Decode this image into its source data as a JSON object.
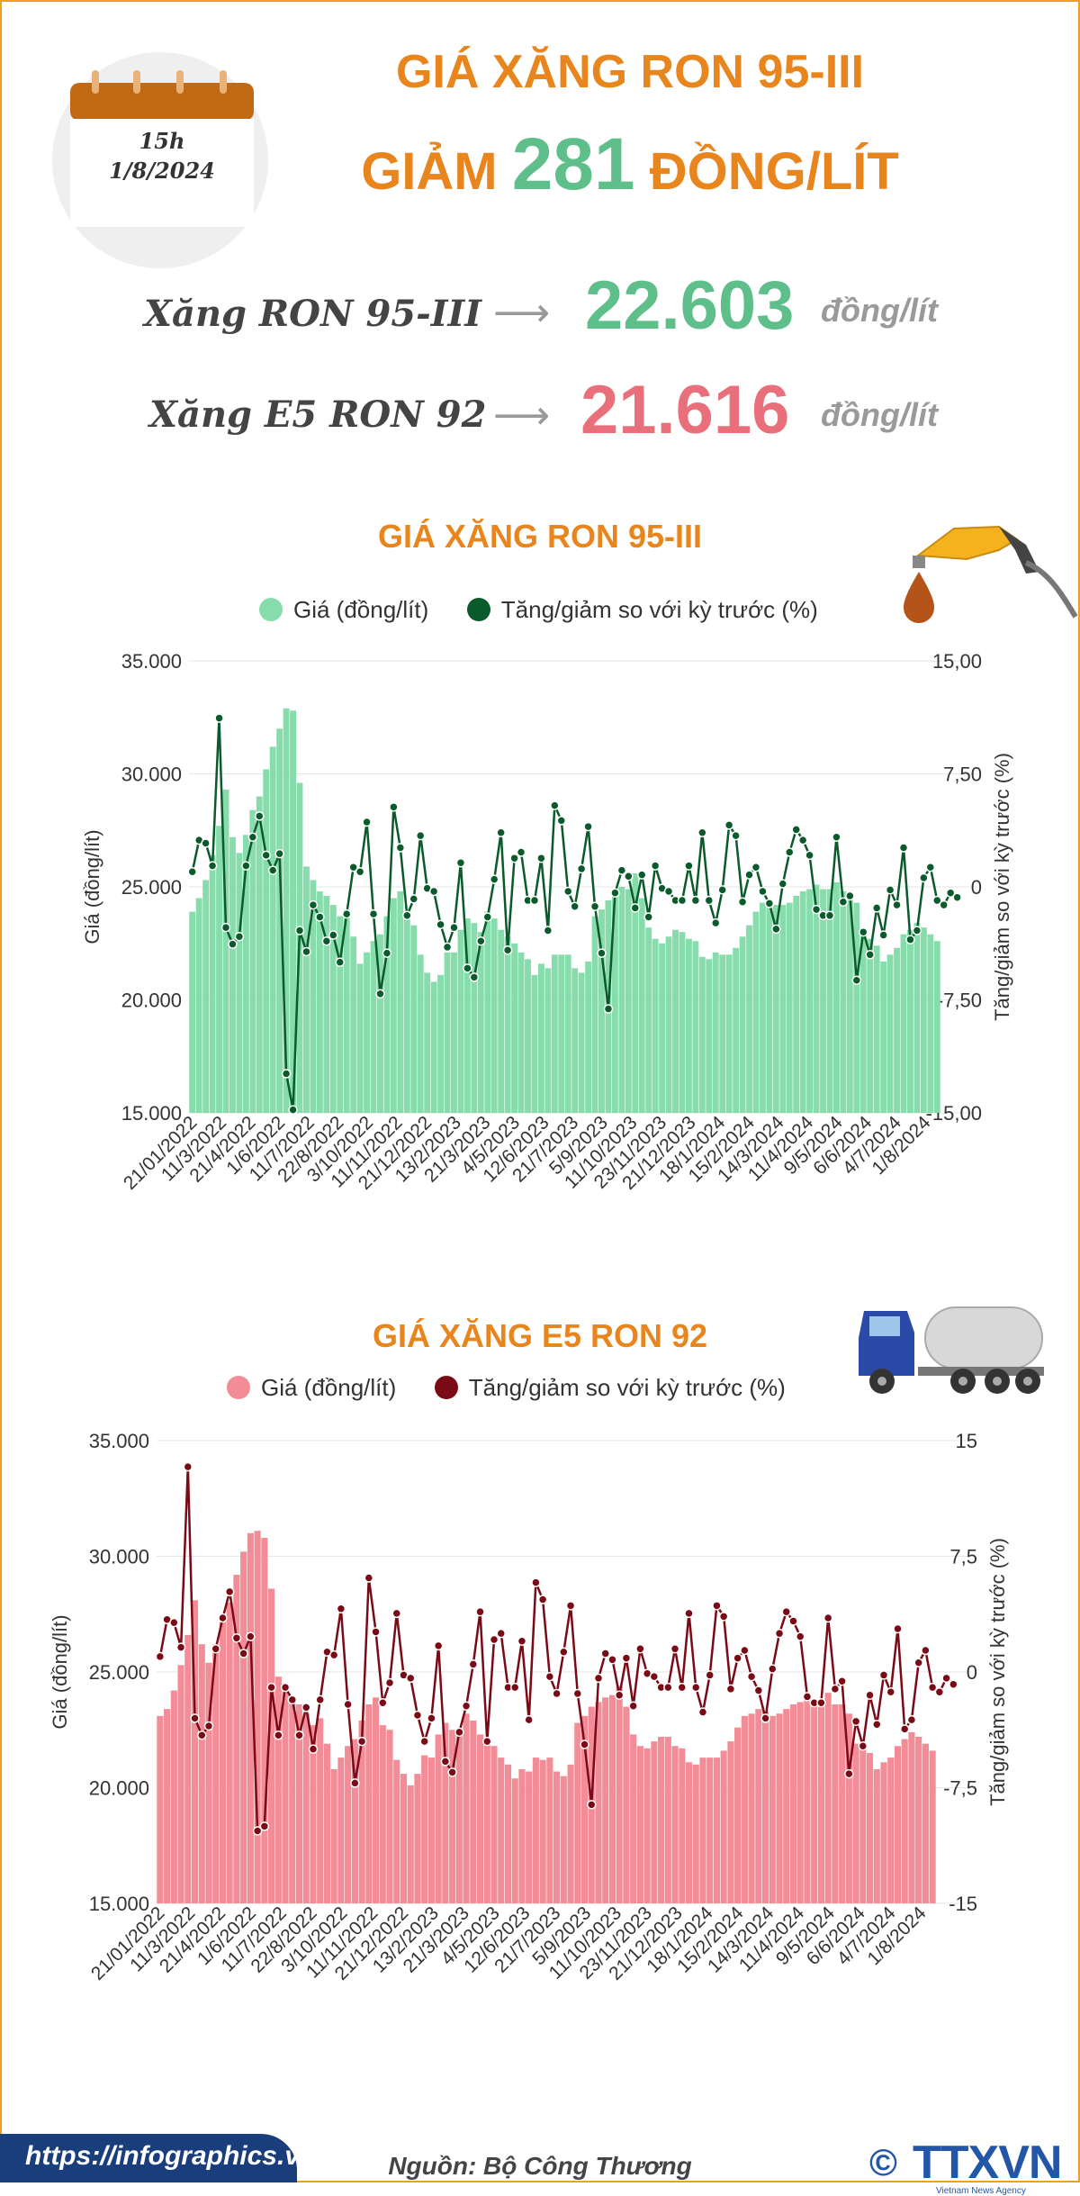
{
  "header": {
    "calendar_time": "15h",
    "calendar_date": "1/8/2024",
    "title_line1": "GIÁ XĂNG RON 95-III",
    "title_line2_prefix": "GIẢM",
    "title_line2_number": "281",
    "title_line2_suffix": "ĐỒNG/LÍT"
  },
  "prices": [
    {
      "label": "Xăng RON 95-III",
      "value": "22.603",
      "unit": "đồng/lít",
      "color": "#5fbf8b"
    },
    {
      "label": "Xăng E5 RON 92",
      "value": "21.616",
      "unit": "đồng/lít",
      "color": "#e9707a"
    }
  ],
  "chart_data": [
    {
      "type": "bar",
      "title": "GIÁ XĂNG RON 95-III",
      "legend": [
        "Giá (đồng/lít)",
        "Tăng/giảm so với kỳ trước (%)"
      ],
      "ylabel": "Giá (đồng/lít)",
      "y2label": "Tăng/giảm so với kỳ trước (%)",
      "ylim": [
        15000,
        35000
      ],
      "y2lim": [
        -15,
        15
      ],
      "yticks": [
        "15.000",
        "20.000",
        "25.000",
        "30.000",
        "35.000"
      ],
      "y2ticks": [
        "-15,00",
        "-7,50",
        "0",
        "7,50",
        "15,00"
      ],
      "xticks": [
        "21/01/2022",
        "11/3/2022",
        "21/4/2022",
        "1/6/2022",
        "11/7/2022",
        "22/8/2022",
        "3/10/2022",
        "11/11/2022",
        "21/12/2022",
        "13/2/2023",
        "21/3/2023",
        "4/5/2023",
        "12/6/2023",
        "21/7/2023",
        "5/9/2023",
        "11/10/2023",
        "23/11/2023",
        "21/12/2023",
        "18/1/2024",
        "15/2/2024",
        "14/3/2024",
        "11/4/2024",
        "9/5/2024",
        "6/6/2024",
        "4/7/2024",
        "1/8/2024"
      ],
      "bar_color": "#86dcab",
      "line_color": "#0b5a2b",
      "values": [
        23900,
        24500,
        25300,
        26400,
        27700,
        29300,
        27200,
        26500,
        27300,
        28400,
        29000,
        30200,
        31200,
        32000,
        32900,
        32800,
        29600,
        25900,
        25300,
        24800,
        24600,
        24200,
        23700,
        24000,
        22800,
        21600,
        22100,
        22600,
        22900,
        23700,
        24500,
        24800,
        23600,
        23300,
        22000,
        21200,
        20800,
        21100,
        22100,
        22100,
        23100,
        23600,
        23400,
        23000,
        23900,
        23600,
        23100,
        22800,
        22500,
        22100,
        21800,
        21100,
        21600,
        21400,
        22000,
        22000,
        22000,
        21400,
        21200,
        21700,
        23700,
        24000,
        24400,
        24700,
        25000,
        24900,
        25600,
        24500,
        23200,
        22700,
        22500,
        22800,
        23100,
        23000,
        22700,
        22600,
        21900,
        21800,
        22100,
        22000,
        22000,
        22300,
        22800,
        23300,
        23900,
        24300,
        24400,
        24200,
        24200,
        24300,
        24600,
        24800,
        24900,
        25100,
        24900,
        24900,
        25200,
        24800,
        24700,
        24300,
        22900,
        22700,
        22400,
        21700,
        22000,
        22300,
        22900,
        23100,
        23400,
        23200,
        22900,
        22600
      ],
      "change": [
        1.0,
        3.1,
        2.9,
        1.4,
        11.2,
        -2.7,
        -3.8,
        -3.3,
        1.4,
        3.3,
        4.7,
        2.1,
        1.1,
        2.2,
        -12.4,
        -14.8,
        -2.9,
        -4.3,
        -1.2,
        -2.0,
        -3.6,
        -3.2,
        -5.0,
        -1.8,
        1.3,
        1.0,
        4.3,
        -1.8,
        -7.1,
        -4.4,
        5.3,
        2.6,
        -1.9,
        -0.8,
        3.4,
        -0.1,
        -0.3,
        -2.5,
        -4.0,
        -2.7,
        1.6,
        -5.4,
        -6.0,
        -3.6,
        -2.0,
        0.5,
        3.6,
        -4.2,
        1.9,
        2.3,
        -0.9,
        -0.9,
        1.9,
        -2.9,
        5.4,
        4.4,
        -0.3,
        -1.3,
        1.2,
        4.0,
        -1.3,
        -4.4,
        -8.1,
        -0.4,
        1.1,
        0.7,
        -1.4,
        0.8,
        -2.0,
        1.4,
        -0.1,
        -0.3,
        -0.9,
        -0.9,
        1.4,
        -0.9,
        3.6,
        -0.9,
        -2.4,
        -0.2,
        4.1,
        3.4,
        -1.0,
        0.8,
        1.3,
        -0.3,
        -1.1,
        -2.8,
        0.2,
        2.3,
        3.8,
        3.1,
        2.1,
        -1.5,
        -1.9,
        -1.9,
        3.3,
        -1.0,
        -0.6,
        -6.2,
        -3.0,
        -4.5,
        -1.4,
        -3.2,
        -0.2,
        -1.2,
        2.6,
        -3.5,
        -2.9,
        0.6,
        1.3,
        -0.9,
        -1.2,
        -0.4,
        -0.7
      ]
    },
    {
      "type": "bar",
      "title": "GIÁ XĂNG E5 RON 92",
      "legend": [
        "Giá (đồng/lít)",
        "Tăng/giảm so với kỳ trước (%)"
      ],
      "ylabel": "Giá (đồng/lít)",
      "y2label": "Tăng/giảm so với kỳ trước (%)",
      "ylim": [
        15000,
        35000
      ],
      "y2lim": [
        -15,
        15
      ],
      "yticks": [
        "15.000",
        "20.000",
        "25.000",
        "30.000",
        "35.000"
      ],
      "y2ticks": [
        "-15",
        "-7,5",
        "0",
        "7,5",
        "15"
      ],
      "xticks": [
        "21/01/2022",
        "11/3/2022",
        "21/4/2022",
        "1/6/2022",
        "11/7/2022",
        "22/8/2022",
        "3/10/2022",
        "11/11/2022",
        "21/12/2022",
        "13/2/2023",
        "21/3/2023",
        "4/5/2023",
        "12/6/2023",
        "21/7/2023",
        "5/9/2023",
        "11/10/2023",
        "23/11/2023",
        "21/12/2023",
        "18/1/2024",
        "15/2/2024",
        "14/3/2024",
        "11/4/2024",
        "9/5/2024",
        "6/6/2024",
        "4/7/2024",
        "1/8/2024"
      ],
      "bar_color": "#f28d97",
      "line_color": "#7a0b16",
      "values": [
        23100,
        23400,
        24200,
        25300,
        26600,
        28100,
        26200,
        25400,
        26200,
        27300,
        28000,
        29200,
        30200,
        31000,
        31100,
        30800,
        28600,
        24800,
        24200,
        23700,
        23600,
        23200,
        22700,
        23000,
        21900,
        20800,
        21300,
        21800,
        22100,
        22900,
        23600,
        23900,
        22700,
        22500,
        21200,
        20600,
        20100,
        20600,
        21400,
        21300,
        22300,
        22800,
        22500,
        22300,
        23200,
        22900,
        22300,
        22100,
        21800,
        21300,
        21000,
        20400,
        20800,
        20700,
        21300,
        21200,
        21300,
        20700,
        20500,
        21000,
        22800,
        23100,
        23500,
        23700,
        23900,
        24000,
        24400,
        23500,
        22300,
        21800,
        21700,
        22000,
        22200,
        22200,
        21800,
        21700,
        21100,
        21000,
        21300,
        21300,
        21300,
        21600,
        22000,
        22600,
        23100,
        23200,
        23400,
        23300,
        23100,
        23200,
        23400,
        23600,
        23700,
        24000,
        23800,
        23800,
        24100,
        23600,
        23600,
        23200,
        21900,
        21700,
        21500,
        20800,
        21100,
        21300,
        21800,
        22100,
        22400,
        22200,
        21900,
        21600
      ],
      "change": [
        1.0,
        3.4,
        3.2,
        1.6,
        13.3,
        -3.0,
        -4.1,
        -3.5,
        1.5,
        3.5,
        5.2,
        2.2,
        1.2,
        2.3,
        -10.3,
        -10.0,
        -1.0,
        -4.1,
        -1.0,
        -1.8,
        -4.1,
        -2.3,
        -5.0,
        -1.8,
        1.3,
        1.1,
        4.1,
        -2.1,
        -7.2,
        -4.5,
        6.1,
        2.6,
        -2.0,
        -0.7,
        3.8,
        -0.2,
        -0.4,
        -2.8,
        -4.5,
        -3.0,
        1.7,
        -5.8,
        -6.5,
        -3.9,
        -2.2,
        0.5,
        3.9,
        -4.5,
        2.1,
        2.5,
        -1.0,
        -1.0,
        2.0,
        -3.1,
        5.8,
        4.7,
        -0.3,
        -1.4,
        1.3,
        4.3,
        -1.4,
        -4.7,
        -8.6,
        -0.4,
        1.2,
        0.8,
        -1.5,
        0.9,
        -2.2,
        1.5,
        -0.1,
        -0.3,
        -1.0,
        -1.0,
        1.5,
        -1.0,
        3.8,
        -1.0,
        -2.6,
        -0.2,
        4.3,
        3.6,
        -1.1,
        0.9,
        1.4,
        -0.3,
        -1.2,
        -3.0,
        0.2,
        2.5,
        3.9,
        3.3,
        2.3,
        -1.6,
        -2.0,
        -2.0,
        3.5,
        -1.1,
        -0.6,
        -6.6,
        -3.2,
        -4.8,
        -1.5,
        -3.4,
        -0.2,
        -1.3,
        2.8,
        -3.7,
        -3.1,
        0.6,
        1.4,
        -1.0,
        -1.3,
        -0.4,
        -0.8
      ]
    }
  ],
  "source": "Nguồn: Bộ Công Thương",
  "footer": {
    "url": "https://infographics.vn",
    "logo": "TTXVN",
    "logo_sub": "Vietnam News Agency"
  }
}
